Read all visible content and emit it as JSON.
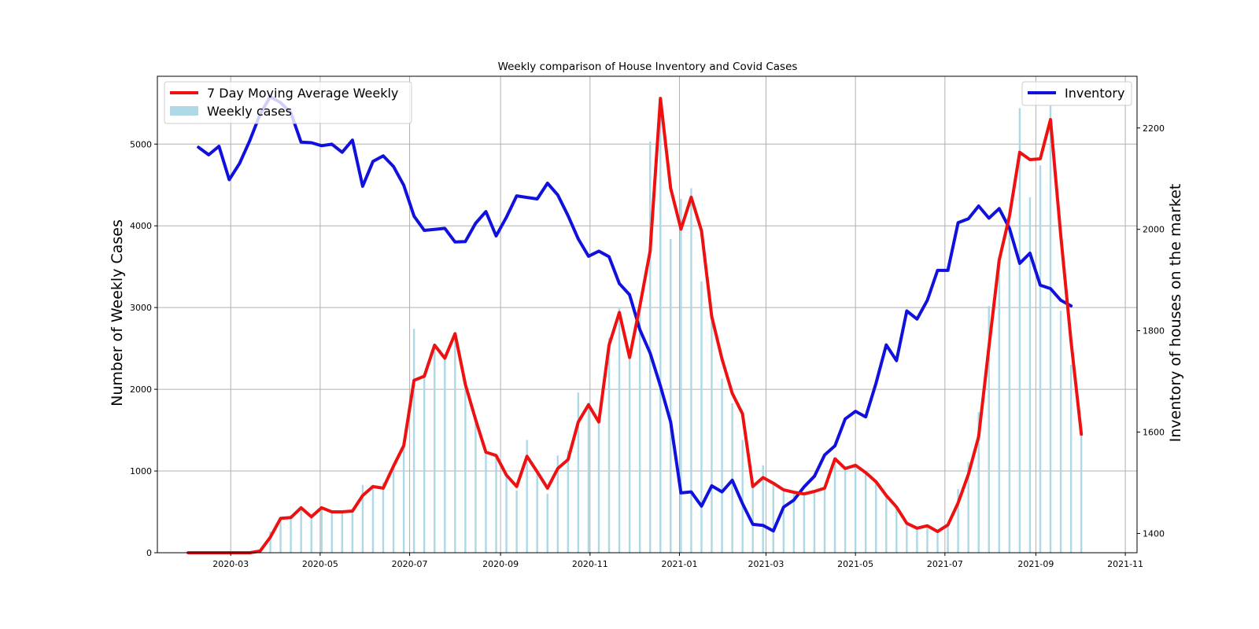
{
  "chart_data": {
    "type": "line",
    "title": "Weekly comparison of House Inventory and Covid Cases",
    "ylabel_left": "Number of Weekly Cases",
    "ylabel_right": "Inventory of houses on the market",
    "xlabel": "",
    "x_tick_labels": [
      "2020-03",
      "2020-05",
      "2020-07",
      "2020-09",
      "2020-11",
      "2021-01",
      "2021-03",
      "2021-05",
      "2021-07",
      "2021-09",
      "2021-11"
    ],
    "x_ticks": [
      "2020-03-01",
      "2020-05-01",
      "2020-07-01",
      "2020-09-01",
      "2020-11-01",
      "2021-01-01",
      "2021-03-01",
      "2021-05-01",
      "2021-07-01",
      "2021-09-01",
      "2021-11-01"
    ],
    "xlim": [
      "2020-01-11",
      "2021-11-09"
    ],
    "ylim_left": [
      0,
      5830
    ],
    "ylim_right": [
      1362,
      2302
    ],
    "yticks_left": [
      0,
      1000,
      2000,
      3000,
      4000,
      5000
    ],
    "yticks_right": [
      1400,
      1600,
      1800,
      2000,
      2200
    ],
    "grid": true,
    "legend_left": {
      "placement": "top-left",
      "entries": [
        {
          "label": "7 Day Moving Average Weekly",
          "color": "#ee1111",
          "kind": "line"
        },
        {
          "label": "Weekly cases",
          "color": "#add8e6",
          "kind": "bar"
        }
      ]
    },
    "legend_right": {
      "placement": "top-right",
      "entries": [
        {
          "label": "Inventory",
          "color": "#1111dd",
          "kind": "line"
        }
      ]
    },
    "series": [
      {
        "name": "7 Day Moving Average Weekly",
        "axis": "left",
        "kind": "line",
        "color": "#ee1111",
        "x": [
          "2020-02-01",
          "2020-02-08",
          "2020-02-15",
          "2020-02-22",
          "2020-02-29",
          "2020-03-07",
          "2020-03-14",
          "2020-03-21",
          "2020-03-28",
          "2020-04-04",
          "2020-04-11",
          "2020-04-18",
          "2020-04-25",
          "2020-05-02",
          "2020-05-09",
          "2020-05-16",
          "2020-05-23",
          "2020-05-30",
          "2020-06-06",
          "2020-06-13",
          "2020-06-20",
          "2020-06-27",
          "2020-07-04",
          "2020-07-11",
          "2020-07-18",
          "2020-07-25",
          "2020-08-01",
          "2020-08-08",
          "2020-08-15",
          "2020-08-22",
          "2020-08-29",
          "2020-09-05",
          "2020-09-12",
          "2020-09-19",
          "2020-09-26",
          "2020-10-03",
          "2020-10-10",
          "2020-10-17",
          "2020-10-24",
          "2020-10-31",
          "2020-11-07",
          "2020-11-14",
          "2020-11-21",
          "2020-11-28",
          "2020-12-05",
          "2020-12-12",
          "2020-12-19",
          "2020-12-26",
          "2021-01-02",
          "2021-01-09",
          "2021-01-16",
          "2021-01-23",
          "2021-01-30",
          "2021-02-06",
          "2021-02-13",
          "2021-02-20",
          "2021-02-27",
          "2021-03-06",
          "2021-03-13",
          "2021-03-20",
          "2021-03-27",
          "2021-04-03",
          "2021-04-10",
          "2021-04-17",
          "2021-04-24",
          "2021-05-01",
          "2021-05-08",
          "2021-05-15",
          "2021-05-22",
          "2021-05-29",
          "2021-06-05",
          "2021-06-12",
          "2021-06-19",
          "2021-06-26",
          "2021-07-03",
          "2021-07-10",
          "2021-07-17",
          "2021-07-24",
          "2021-07-31",
          "2021-08-07",
          "2021-08-14",
          "2021-08-21",
          "2021-08-28",
          "2021-09-04",
          "2021-09-11",
          "2021-09-18",
          "2021-09-25",
          "2021-10-02"
        ],
        "values": [
          0,
          0,
          0,
          0,
          0,
          0,
          0,
          20,
          190,
          420,
          430,
          550,
          440,
          550,
          500,
          500,
          510,
          700,
          810,
          790,
          1060,
          1310,
          2110,
          2160,
          2540,
          2380,
          2680,
          2060,
          1630,
          1230,
          1190,
          950,
          810,
          1180,
          990,
          790,
          1030,
          1140,
          1600,
          1810,
          1600,
          2540,
          2940,
          2390,
          3020,
          3690,
          5560,
          4460,
          3960,
          4350,
          3940,
          2890,
          2370,
          1950,
          1700,
          810,
          920,
          850,
          770,
          740,
          720,
          750,
          790,
          1150,
          1030,
          1070,
          980,
          870,
          700,
          560,
          360,
          300,
          330,
          260,
          340,
          610,
          960,
          1420,
          2520,
          3580,
          4120,
          4900,
          4810,
          4820,
          5300,
          3880,
          2590,
          1450
        ]
      },
      {
        "name": "Weekly cases",
        "axis": "left",
        "kind": "bar",
        "color": "#add8e6",
        "x": [
          "2020-02-01",
          "2020-02-08",
          "2020-02-15",
          "2020-02-22",
          "2020-02-29",
          "2020-03-07",
          "2020-03-14",
          "2020-03-21",
          "2020-03-28",
          "2020-04-04",
          "2020-04-11",
          "2020-04-18",
          "2020-04-25",
          "2020-05-02",
          "2020-05-09",
          "2020-05-16",
          "2020-05-23",
          "2020-05-30",
          "2020-06-06",
          "2020-06-13",
          "2020-06-20",
          "2020-06-27",
          "2020-07-04",
          "2020-07-11",
          "2020-07-18",
          "2020-07-25",
          "2020-08-01",
          "2020-08-08",
          "2020-08-15",
          "2020-08-22",
          "2020-08-29",
          "2020-09-05",
          "2020-09-12",
          "2020-09-19",
          "2020-09-26",
          "2020-10-03",
          "2020-10-10",
          "2020-10-17",
          "2020-10-24",
          "2020-10-31",
          "2020-11-07",
          "2020-11-14",
          "2020-11-21",
          "2020-11-28",
          "2020-12-05",
          "2020-12-12",
          "2020-12-19",
          "2020-12-26",
          "2021-01-02",
          "2021-01-09",
          "2021-01-16",
          "2021-01-23",
          "2021-01-30",
          "2021-02-06",
          "2021-02-13",
          "2021-02-20",
          "2021-02-27",
          "2021-03-06",
          "2021-03-13",
          "2021-03-20",
          "2021-03-27",
          "2021-04-03",
          "2021-04-10",
          "2021-04-17",
          "2021-04-24",
          "2021-05-01",
          "2021-05-08",
          "2021-05-15",
          "2021-05-22",
          "2021-05-29",
          "2021-06-05",
          "2021-06-12",
          "2021-06-19",
          "2021-06-26",
          "2021-07-03",
          "2021-07-10",
          "2021-07-17",
          "2021-07-24",
          "2021-07-31",
          "2021-08-07",
          "2021-08-14",
          "2021-08-21",
          "2021-08-28",
          "2021-09-04",
          "2021-09-11",
          "2021-09-18",
          "2021-09-25",
          "2021-10-02"
        ],
        "values": [
          0,
          0,
          0,
          0,
          0,
          0,
          0,
          40,
          260,
          430,
          460,
          560,
          470,
          560,
          510,
          510,
          520,
          830,
          820,
          860,
          1090,
          1320,
          2740,
          2160,
          2560,
          2370,
          2700,
          2040,
          1600,
          1220,
          1190,
          950,
          760,
          1380,
          970,
          720,
          1190,
          1250,
          1960,
          1840,
          1600,
          2630,
          2990,
          2420,
          3080,
          5030,
          5560,
          3840,
          4330,
          4460,
          3320,
          2880,
          2130,
          1830,
          1380,
          800,
          1070,
          850,
          780,
          750,
          720,
          760,
          790,
          1150,
          1020,
          1080,
          970,
          850,
          700,
          550,
          350,
          310,
          330,
          260,
          340,
          780,
          1110,
          1720,
          3020,
          3590,
          4120,
          5440,
          4350,
          4740,
          5470,
          2960,
          2300,
          1460
        ]
      },
      {
        "name": "Inventory",
        "axis": "right",
        "kind": "line",
        "color": "#1111dd",
        "x": [
          "2020-02-08",
          "2020-02-15",
          "2020-02-22",
          "2020-02-29",
          "2020-03-07",
          "2020-03-14",
          "2020-03-21",
          "2020-03-28",
          "2020-04-04",
          "2020-04-11",
          "2020-04-18",
          "2020-04-25",
          "2020-05-02",
          "2020-05-09",
          "2020-05-16",
          "2020-05-23",
          "2020-05-30",
          "2020-06-06",
          "2020-06-13",
          "2020-06-20",
          "2020-06-27",
          "2020-07-04",
          "2020-07-11",
          "2020-07-18",
          "2020-07-25",
          "2020-08-01",
          "2020-08-08",
          "2020-08-15",
          "2020-08-22",
          "2020-08-29",
          "2020-09-05",
          "2020-09-12",
          "2020-09-19",
          "2020-09-26",
          "2020-10-03",
          "2020-10-10",
          "2020-10-17",
          "2020-10-24",
          "2020-10-31",
          "2020-11-07",
          "2020-11-14",
          "2020-11-21",
          "2020-11-28",
          "2020-12-05",
          "2020-12-12",
          "2020-12-19",
          "2020-12-26",
          "2021-01-02",
          "2021-01-09",
          "2021-01-16",
          "2021-01-23",
          "2021-01-30",
          "2021-02-06",
          "2021-02-13",
          "2021-02-20",
          "2021-02-27",
          "2021-03-06",
          "2021-03-13",
          "2021-03-20",
          "2021-03-27",
          "2021-04-03",
          "2021-04-10",
          "2021-04-17",
          "2021-04-24",
          "2021-05-01",
          "2021-05-08",
          "2021-05-15",
          "2021-05-22",
          "2021-05-29",
          "2021-06-05",
          "2021-06-12",
          "2021-06-19",
          "2021-06-26",
          "2021-07-03",
          "2021-07-10",
          "2021-07-17",
          "2021-07-24",
          "2021-07-31",
          "2021-08-07",
          "2021-08-14",
          "2021-08-21",
          "2021-08-28",
          "2021-09-04",
          "2021-09-11",
          "2021-09-18",
          "2021-09-25"
        ],
        "values": [
          2162,
          2147,
          2164,
          2098,
          2130,
          2175,
          2227,
          2262,
          2250,
          2230,
          2172,
          2171,
          2165,
          2168,
          2152,
          2176,
          2085,
          2134,
          2145,
          2124,
          2087,
          2026,
          1998,
          2000,
          2002,
          1975,
          1976,
          2012,
          2035,
          1987,
          2024,
          2066,
          2063,
          2060,
          2091,
          2068,
          2027,
          1981,
          1947,
          1957,
          1946,
          1893,
          1871,
          1802,
          1756,
          1691,
          1620,
          1480,
          1482,
          1454,
          1494,
          1482,
          1505,
          1459,
          1418,
          1416,
          1405,
          1452,
          1466,
          1492,
          1513,
          1555,
          1573,
          1626,
          1641,
          1630,
          1696,
          1772,
          1741,
          1839,
          1823,
          1860,
          1919,
          1919,
          2013,
          2021,
          2046,
          2022,
          2041,
          2002,
          1933,
          1953,
          1890,
          1883,
          1860,
          1849
        ]
      }
    ]
  }
}
